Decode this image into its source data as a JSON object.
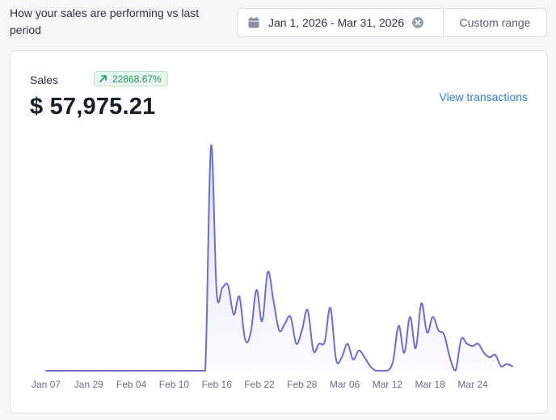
{
  "header": {
    "title": "How your sales are performing vs last period"
  },
  "date_range": {
    "value": "Jan 1, 2026 - Mar 31, 2026",
    "icon": "calendar-icon",
    "clear_icon": "clear-icon",
    "custom_label": "Custom range"
  },
  "sales": {
    "label": "Sales",
    "change": "22868.67%",
    "change_icon": "arrow-up-right-icon",
    "value": "$ 57,975.21",
    "view_link": "View transactions"
  },
  "colors": {
    "line": "#6f6bd8",
    "badge_text": "#1f9a5a",
    "link": "#2a7fd0"
  },
  "chart_data": {
    "type": "area",
    "x_labels": [
      "Jan 07",
      "Jan 29",
      "Feb 04",
      "Feb 10",
      "Feb 16",
      "Feb 22",
      "Feb 28",
      "Mar 06",
      "Mar 12",
      "Mar 18",
      "Mar 24"
    ],
    "values": [
      0,
      0,
      0,
      0,
      0,
      0,
      0,
      0,
      0,
      0,
      0,
      0,
      0,
      0,
      0,
      0,
      0,
      0,
      0,
      0,
      0,
      0,
      0,
      0,
      0,
      0,
      0,
      0,
      0,
      100,
      35,
      37,
      38,
      25,
      33,
      14,
      17,
      36,
      22,
      44,
      31,
      18,
      21,
      24,
      12,
      18,
      27,
      9,
      12,
      13,
      28,
      5,
      6,
      12,
      5,
      9,
      6,
      2,
      0,
      0,
      0,
      4,
      20,
      8,
      24,
      10,
      30,
      17,
      24,
      18,
      16,
      6,
      0,
      14,
      12,
      11,
      12,
      8,
      6,
      7,
      2,
      3,
      2
    ]
  }
}
